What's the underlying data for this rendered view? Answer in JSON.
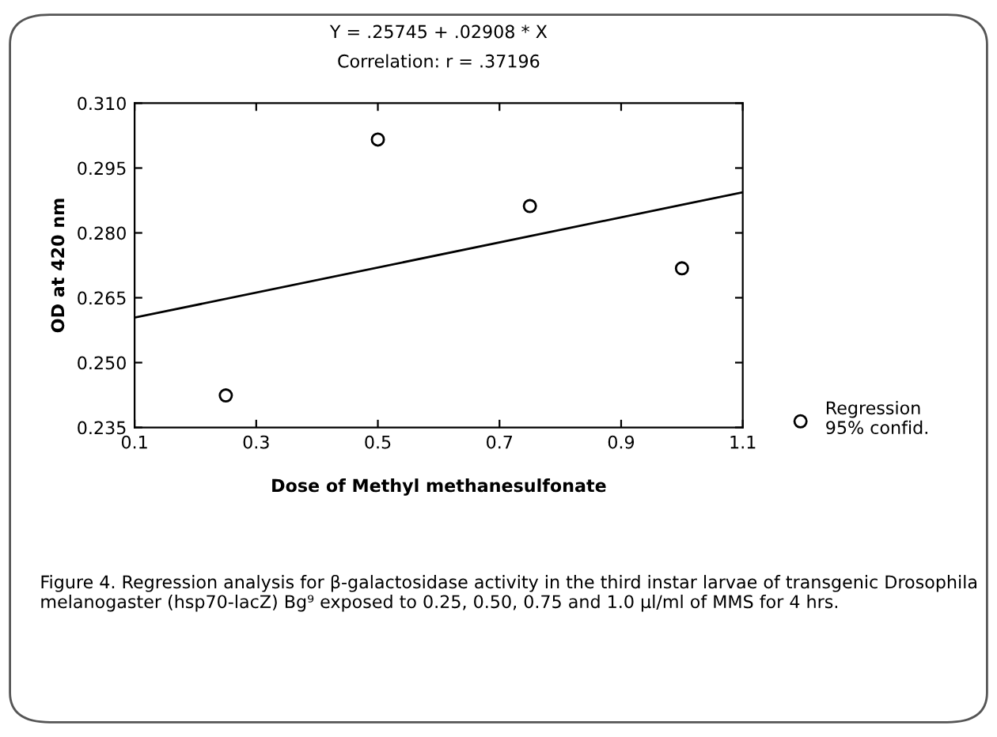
{
  "chart_data": {
    "type": "scatter",
    "title": "Y = .25745 + .02908 * X",
    "subtitle": "Correlation: r = .37196",
    "xlabel": "Dose of Methyl methanesulfonate",
    "ylabel": "OD at 420 nm",
    "series": [
      {
        "name": "Regression\n95% confid.",
        "marker": "circle",
        "color": "#000000",
        "x": [
          0.25,
          0.5,
          0.75,
          1.0
        ],
        "values": [
          0.2424,
          0.3016,
          0.2862,
          0.2718
        ]
      },
      {
        "type": "line",
        "color": "#000000",
        "x": [
          0.1,
          1.1
        ],
        "values": [
          0.2604,
          0.2894
        ]
      }
    ],
    "xlim": [
      0.1,
      1.1
    ],
    "xticks": [
      0.1,
      0.3,
      0.5,
      0.7,
      0.9,
      1.1
    ],
    "ylim": [
      0.235,
      0.31
    ],
    "yticks": [
      {
        "value": 0.235,
        "label": "0.235"
      },
      {
        "value": 0.25,
        "label": "0.250"
      },
      {
        "value": 0.265,
        "label": "0.265"
      },
      {
        "value": 0.28,
        "label": "0.280"
      },
      {
        "value": 0.295,
        "label": "0.295"
      },
      {
        "value": 0.31,
        "label": "0.310"
      }
    ],
    "grid": false,
    "legend": "bottom right",
    "annotations": [
      "Figure 4. Regression analysis for β-galactosidase activity in the third instar larvae of transgenic Drosophila melanogaster (hsp70-lacZ) Bg⁹ exposed to 0.25, 0.50, 0.75 and 1.0 µl/ml of MMS for 4 hrs."
    ]
  }
}
